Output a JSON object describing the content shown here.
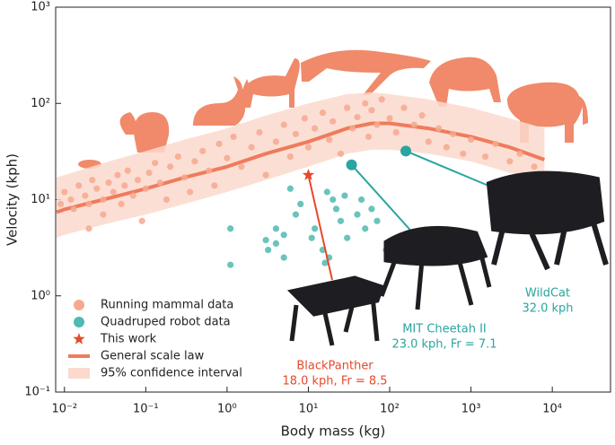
{
  "chart_data": {
    "type": "scatter",
    "xlabel": "Body mass (kg)",
    "ylabel": "Velocity (kph)",
    "log_x": true,
    "log_y": true,
    "xlim": [
      0.0078,
      52000
    ],
    "ylim": [
      0.1,
      1000
    ],
    "xticks": [
      {
        "value": 0.01,
        "label": "10⁻²"
      },
      {
        "value": 0.1,
        "label": "10⁻¹"
      },
      {
        "value": 1,
        "label": "10⁰"
      },
      {
        "value": 10,
        "label": "10¹"
      },
      {
        "value": 100,
        "label": "10²"
      },
      {
        "value": 1000,
        "label": "10³"
      },
      {
        "value": 10000,
        "label": "10⁴"
      }
    ],
    "yticks": [
      {
        "value": 0.1,
        "label": "10⁻¹"
      },
      {
        "value": 1,
        "label": "10⁰"
      },
      {
        "value": 10,
        "label": "10¹"
      },
      {
        "value": 100,
        "label": "10²"
      },
      {
        "value": 1000,
        "label": "10³"
      }
    ],
    "legend": "lower left",
    "series": [
      {
        "name": "Running mammal data",
        "color": "#f6a98f",
        "kind": "points",
        "x": [
          0.009,
          0.01,
          0.012,
          0.013,
          0.015,
          0.018,
          0.02,
          0.02,
          0.022,
          0.025,
          0.03,
          0.03,
          0.035,
          0.04,
          0.045,
          0.05,
          0.055,
          0.06,
          0.07,
          0.08,
          0.09,
          0.1,
          0.11,
          0.13,
          0.15,
          0.18,
          0.2,
          0.25,
          0.3,
          0.35,
          0.4,
          0.5,
          0.6,
          0.7,
          0.8,
          1,
          1.2,
          1.5,
          2,
          2.5,
          3,
          4,
          5,
          6,
          7,
          9,
          10,
          12,
          15,
          18,
          20,
          25,
          30,
          35,
          40,
          50,
          55,
          60,
          70,
          80,
          100,
          120,
          150,
          200,
          250,
          300,
          400,
          500,
          600,
          800,
          1000,
          1500,
          2000,
          3000,
          4000,
          6000
        ],
        "y": [
          9,
          12,
          10,
          8,
          14,
          11,
          9,
          5,
          16,
          13,
          10,
          7,
          15,
          12,
          18,
          9,
          14,
          20,
          11,
          16,
          6,
          13,
          19,
          24,
          15,
          10,
          22,
          28,
          17,
          12,
          25,
          32,
          20,
          14,
          38,
          27,
          45,
          22,
          35,
          50,
          18,
          40,
          60,
          28,
          48,
          70,
          35,
          55,
          80,
          42,
          65,
          30,
          90,
          55,
          72,
          100,
          45,
          85,
          60,
          110,
          70,
          50,
          90,
          60,
          75,
          40,
          55,
          35,
          48,
          30,
          42,
          28,
          38,
          25,
          30,
          22
        ]
      },
      {
        "name": "Quadruped robot data",
        "color": "#4fbab2",
        "kind": "points",
        "x": [
          1.1,
          1.1,
          3,
          3.2,
          4,
          4,
          5,
          5,
          6,
          7,
          8,
          11,
          12,
          15,
          16,
          17,
          18,
          20,
          22,
          25,
          28,
          30,
          40,
          45,
          50,
          60,
          70,
          90
        ],
        "y": [
          5,
          2.1,
          3.8,
          3,
          5,
          3.5,
          4.3,
          2.5,
          13,
          7,
          9,
          4,
          5,
          3,
          2.2,
          12,
          2.5,
          10,
          8,
          6,
          11,
          4,
          7,
          10,
          5,
          8,
          6,
          3
        ]
      },
      {
        "name": "This work",
        "color": "#e8482c",
        "kind": "star",
        "x": [
          10
        ],
        "y": [
          18
        ]
      },
      {
        "name": "General scale law",
        "color": "#ef7b5c",
        "kind": "line",
        "x": [
          0.008,
          0.01,
          0.03,
          0.1,
          0.3,
          1,
          3,
          10,
          30,
          60,
          100,
          300,
          1000,
          3000,
          8000
        ],
        "y": [
          7.4,
          7.9,
          10,
          13,
          17,
          22,
          30,
          40,
          55,
          62,
          62,
          55,
          45,
          35,
          26
        ]
      },
      {
        "name": "95% confidence interval",
        "color": "#fbd9cd",
        "kind": "band",
        "x": [
          0.008,
          0.01,
          0.03,
          0.1,
          0.3,
          1,
          3,
          10,
          30,
          60,
          100,
          300,
          1000,
          3000,
          8000
        ],
        "lower": [
          4,
          4.3,
          5.5,
          7,
          9,
          12,
          16,
          22,
          30,
          33,
          33,
          30,
          25,
          19,
          15
        ],
        "upper": [
          17,
          18,
          24,
          32,
          42,
          55,
          75,
          100,
          125,
          130,
          125,
          110,
          90,
          70,
          55
        ]
      }
    ],
    "annotations": [
      {
        "label": "BlackPanther",
        "detail": "18.0 kph, Fr = 8.5",
        "color": "#e8482c"
      },
      {
        "label": "MIT Cheetah II",
        "detail": "23.0 kph, Fr = 7.1",
        "color": "#2aa5a0",
        "x": 34,
        "y": 23
      },
      {
        "label": "WildCat",
        "detail": "32.0 kph",
        "color": "#2aa5a0",
        "x": 158,
        "y": 32
      }
    ]
  }
}
